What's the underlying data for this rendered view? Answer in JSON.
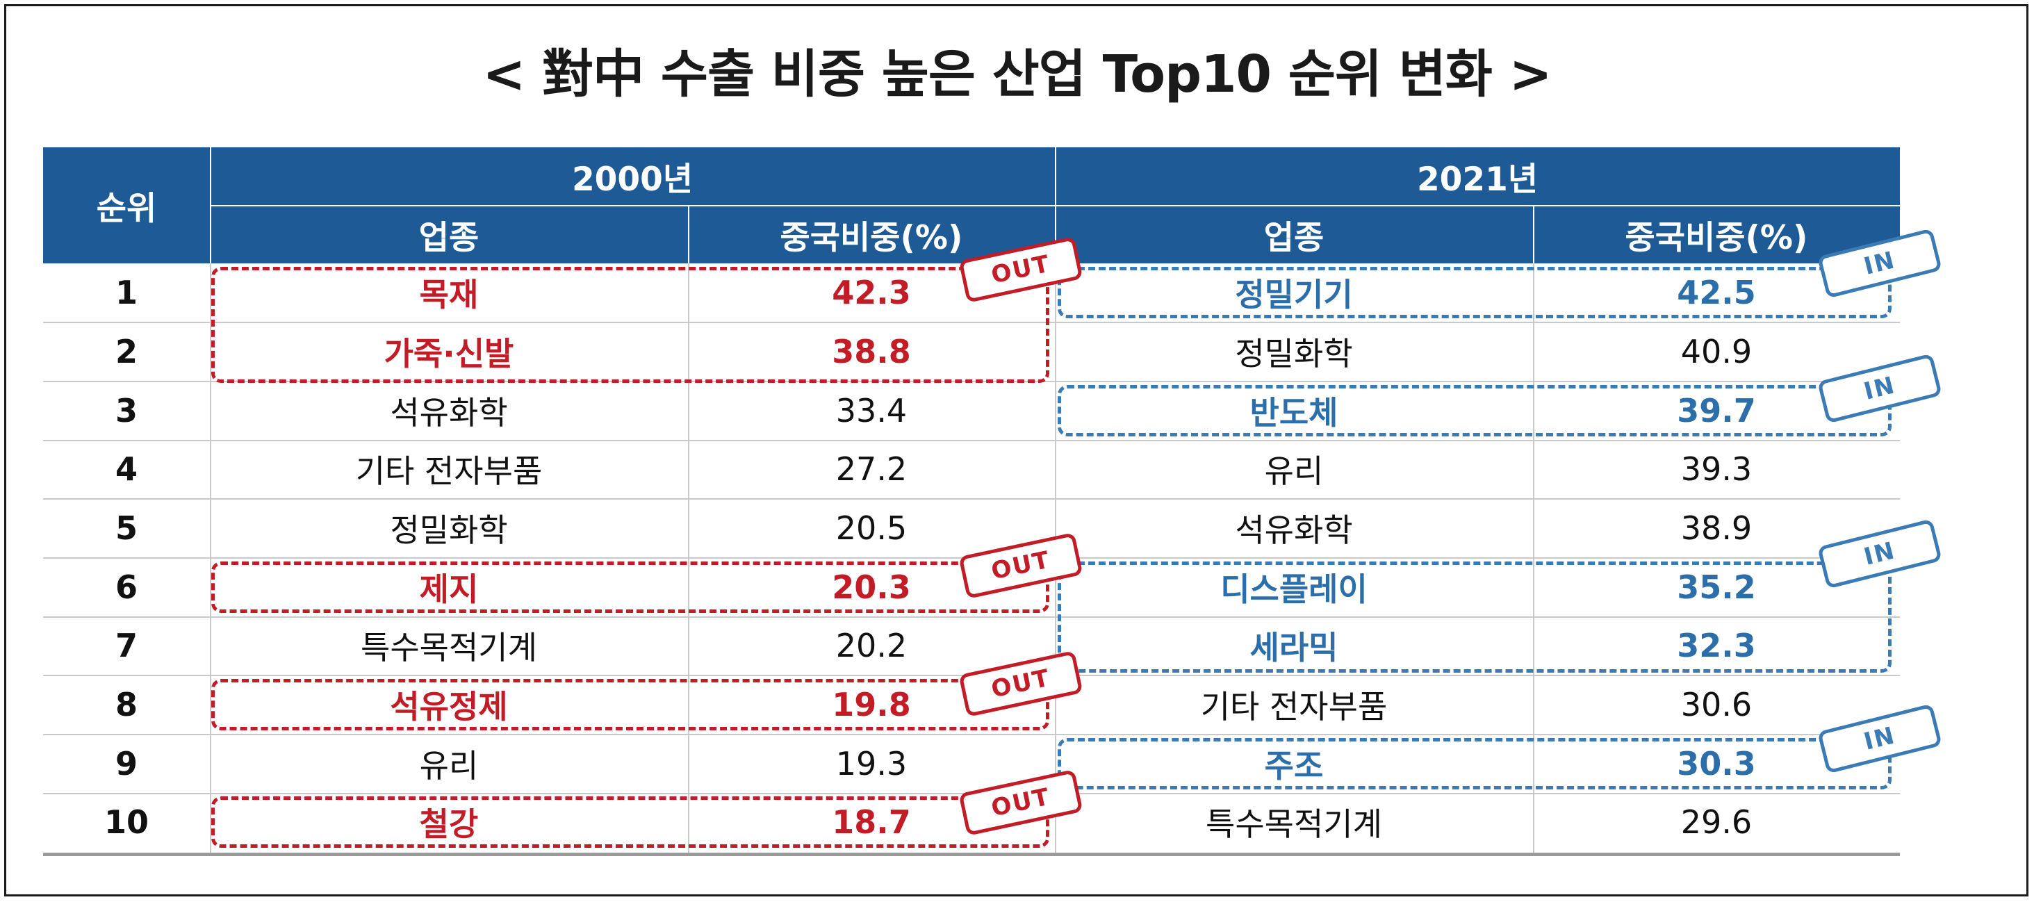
{
  "title": "< 對中 수출 비중 높은 산업 Top10 순위 변화 >",
  "headers": {
    "rank": "순위",
    "year_2000": "2000년",
    "year_2021": "2021년",
    "industry": "업종",
    "share": "중국비중(%)"
  },
  "rows": [
    {
      "rank": "1",
      "ind2000": "목재",
      "val2000": "42.3",
      "ind2021": "정밀기기",
      "val2021": "42.5"
    },
    {
      "rank": "2",
      "ind2000": "가죽·신발",
      "val2000": "38.8",
      "ind2021": "정밀화학",
      "val2021": "40.9"
    },
    {
      "rank": "3",
      "ind2000": "석유화학",
      "val2000": "33.4",
      "ind2021": "반도체",
      "val2021": "39.7"
    },
    {
      "rank": "4",
      "ind2000": "기타 전자부품",
      "val2000": "27.2",
      "ind2021": "유리",
      "val2021": "39.3"
    },
    {
      "rank": "5",
      "ind2000": "정밀화학",
      "val2000": "20.5",
      "ind2021": "석유화학",
      "val2021": "38.9"
    },
    {
      "rank": "6",
      "ind2000": "제지",
      "val2000": "20.3",
      "ind2021": "디스플레이",
      "val2021": "35.2"
    },
    {
      "rank": "7",
      "ind2000": "특수목적기계",
      "val2000": "20.2",
      "ind2021": "세라믹",
      "val2021": "32.3"
    },
    {
      "rank": "8",
      "ind2000": "석유정제",
      "val2000": "19.8",
      "ind2021": "기타 전자부품",
      "val2021": "30.6"
    },
    {
      "rank": "9",
      "ind2000": "유리",
      "val2000": "19.3",
      "ind2021": "주조",
      "val2021": "30.3"
    },
    {
      "rank": "10",
      "ind2000": "철강",
      "val2000": "18.7",
      "ind2021": "특수목적기계",
      "val2021": "29.6"
    }
  ],
  "stamps": {
    "out": "OUT",
    "in": "IN"
  },
  "colors": {
    "header_bg": "#1e5b96",
    "out_red": "#c21c26",
    "in_blue": "#3a7bb5"
  }
}
